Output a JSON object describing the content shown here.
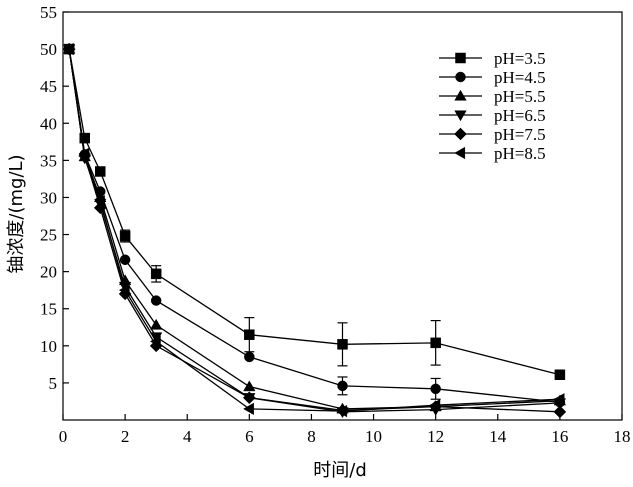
{
  "chart_data": {
    "type": "line",
    "title": "",
    "xlabel": "时间/d",
    "ylabel": "铀浓度/(mg/L)",
    "xlim": [
      0,
      18
    ],
    "ylim": [
      0,
      55
    ],
    "xticks": [
      0,
      2,
      4,
      6,
      8,
      10,
      12,
      14,
      16,
      18
    ],
    "yticks": [
      5,
      10,
      15,
      20,
      25,
      30,
      35,
      40,
      45,
      50,
      55
    ],
    "grid": false,
    "legend_position": "top-right",
    "series": [
      {
        "name": "pH=3.5",
        "marker": "square",
        "x": [
          0.2,
          0.7,
          1.2,
          2,
          3,
          6,
          9,
          12,
          16
        ],
        "y": [
          50,
          38,
          33.5,
          24.8,
          19.7,
          11.5,
          10.2,
          10.4,
          6.1
        ],
        "err": [
          0,
          0,
          0,
          0.8,
          1.1,
          2.3,
          2.9,
          3.0,
          0
        ]
      },
      {
        "name": "pH=4.5",
        "marker": "circle",
        "x": [
          0.2,
          0.7,
          1.2,
          2,
          3,
          6,
          9,
          12,
          16
        ],
        "y": [
          50,
          35.8,
          30.8,
          21.6,
          16.1,
          8.5,
          4.6,
          4.2,
          2.4
        ],
        "err": [
          0,
          0,
          0,
          0,
          0,
          0,
          1.2,
          1.4,
          0
        ]
      },
      {
        "name": "pH=5.5",
        "marker": "triangle-up",
        "x": [
          0.2,
          0.7,
          1.2,
          2,
          3,
          6,
          9,
          12,
          16
        ],
        "y": [
          50,
          35.5,
          30.0,
          18.8,
          12.8,
          4.5,
          1.5,
          1.8,
          2.6
        ],
        "err": [
          0,
          0,
          0,
          0,
          0,
          0,
          0,
          0,
          0
        ]
      },
      {
        "name": "pH=6.5",
        "marker": "triangle-down",
        "x": [
          0.2,
          0.7,
          1.2,
          2,
          3,
          6,
          9,
          12,
          16
        ],
        "y": [
          50,
          35.3,
          29.2,
          18.0,
          11.2,
          3.0,
          1.1,
          1.4,
          2.3
        ],
        "err": [
          0,
          0,
          0,
          0,
          0,
          0,
          0,
          0,
          0
        ]
      },
      {
        "name": "pH=7.5",
        "marker": "diamond",
        "x": [
          0.2,
          0.7,
          1.2,
          2,
          3,
          6,
          9,
          12,
          16
        ],
        "y": [
          50,
          35.6,
          28.6,
          17.0,
          10.0,
          3.0,
          1.3,
          1.8,
          1.1
        ],
        "err": [
          0,
          0,
          0,
          0,
          0,
          0,
          0,
          0,
          0
        ]
      },
      {
        "name": "pH=8.5",
        "marker": "triangle-left",
        "x": [
          0.2,
          0.7,
          1.2,
          2,
          3,
          6,
          9,
          12,
          16
        ],
        "y": [
          50,
          35.9,
          29.5,
          17.5,
          10.6,
          1.5,
          1.2,
          2.0,
          2.8
        ],
        "err": [
          0,
          0,
          0,
          0,
          0,
          0,
          0,
          0,
          0
        ]
      }
    ]
  }
}
